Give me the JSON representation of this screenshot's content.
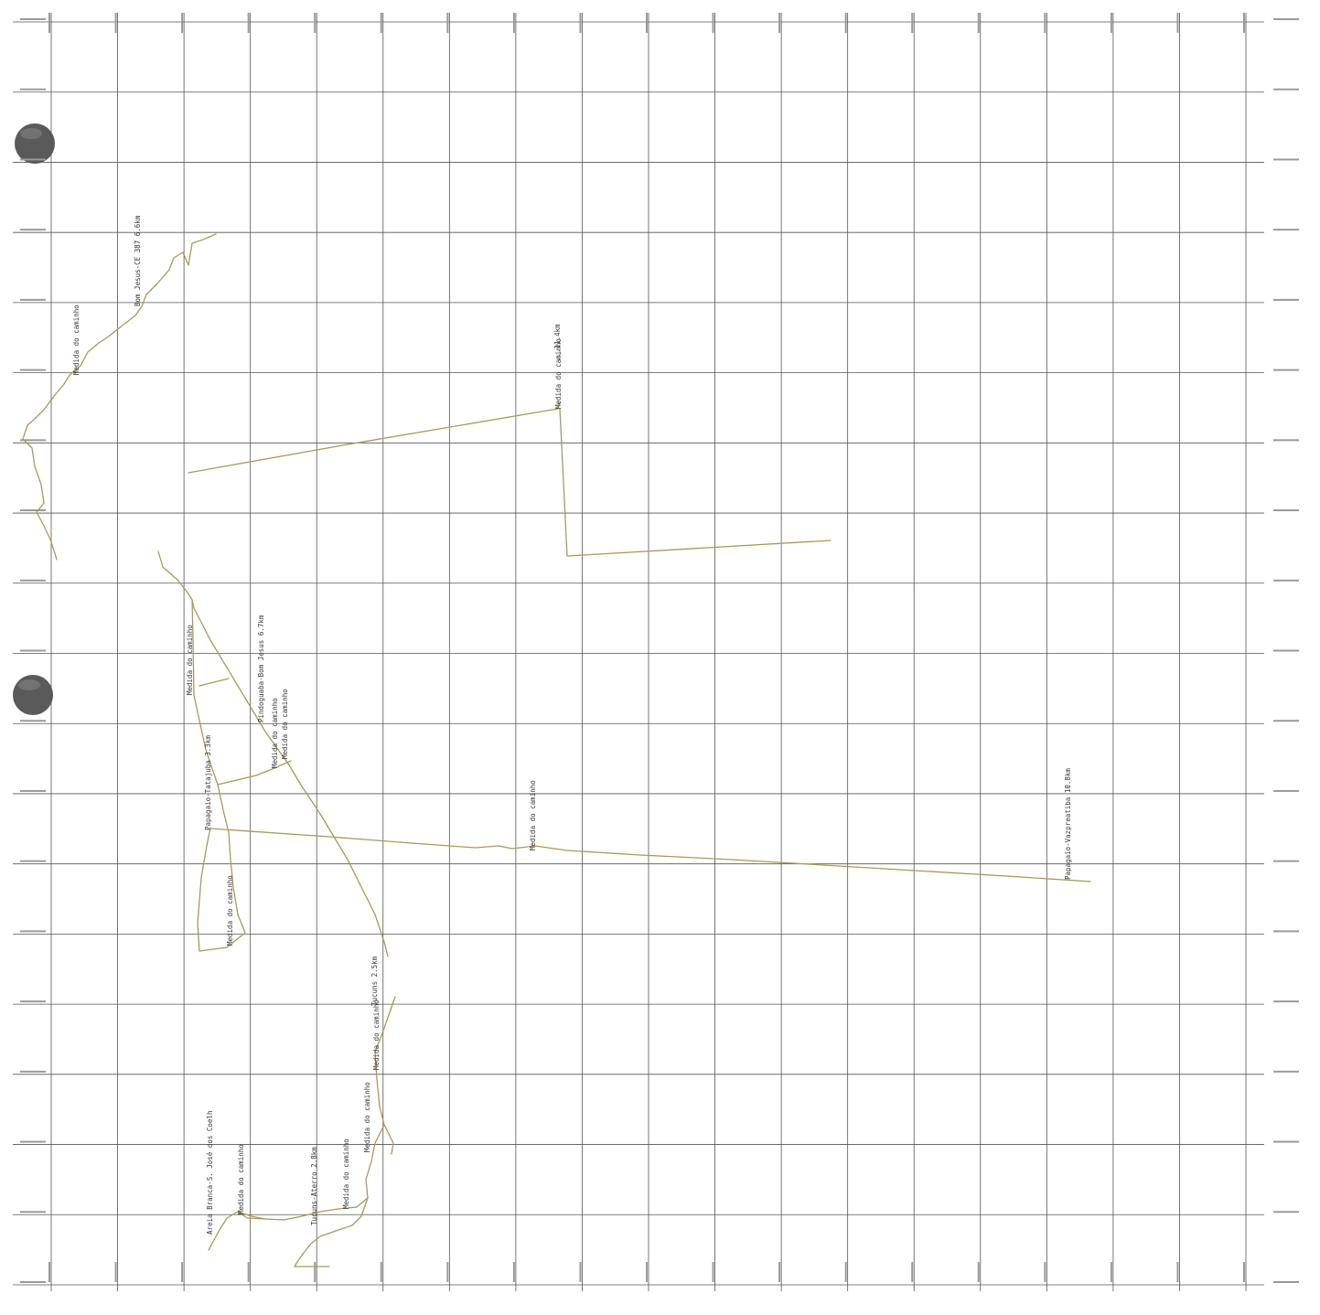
{
  "map": {
    "background": "#ffffff",
    "grid_color": "#555555",
    "route_color": "#a89a58",
    "grid_cols": 18,
    "grid_rows": 18,
    "labels": [
      {
        "id": "lbl-bom-jesus-ce387",
        "text": "Bom Jesus-CE 387 6.6km"
      },
      {
        "id": "lbl-medida-top-left",
        "text": "Medida do caminho"
      },
      {
        "id": "lbl-top-center-1",
        "text": "...11.4km"
      },
      {
        "id": "lbl-top-center-2",
        "text": "Medida do caminho"
      },
      {
        "id": "lbl-medida-mid-left",
        "text": "Medida do caminho"
      },
      {
        "id": "lbl-pindoguaba-bom-jesus",
        "text": "Pindoguaba-Bom Jesus 6.7km"
      },
      {
        "id": "lbl-medida-mid-2",
        "text": "Medida do caminho"
      },
      {
        "id": "lbl-medida-mid-3",
        "text": "Medida do caminho"
      },
      {
        "id": "lbl-papagaio-tatajuba",
        "text": "Papagaio-Tatajuba 3.3km"
      },
      {
        "id": "lbl-medida-center",
        "text": "Medida do caminho"
      },
      {
        "id": "lbl-papagaio-vazpreatiba",
        "text": "Papagaio-Vazpreatiba 10.8km"
      },
      {
        "id": "lbl-medida-lower-left",
        "text": "Medida do caminho"
      },
      {
        "id": "lbl-tucuns-25",
        "text": "Tucuns 2.5km"
      },
      {
        "id": "lbl-medida-bottom-1",
        "text": "Medida do caminho"
      },
      {
        "id": "lbl-medida-bottom-2",
        "text": "Medida do caminho"
      },
      {
        "id": "lbl-areia-branca",
        "text": "Areia Branca-S. José dos Coelh"
      },
      {
        "id": "lbl-medida-bottom-3",
        "text": "Medida do caminho"
      },
      {
        "id": "lbl-tucuns-aterro",
        "text": "Tucuns-Aterro 2.8km"
      },
      {
        "id": "lbl-medida-bottom-4",
        "text": "Medida do caminho"
      }
    ],
    "routes": [
      {
        "id": "route-west-coast",
        "name": "west-coast-route"
      },
      {
        "id": "route-top-straight",
        "name": "top-straight-route"
      },
      {
        "id": "route-top-right",
        "name": "top-right-route"
      },
      {
        "id": "route-mid-diagonal",
        "name": "mid-diagonal-route"
      },
      {
        "id": "route-papagaio-east",
        "name": "papagaio-east-route"
      },
      {
        "id": "route-lower-loop",
        "name": "lower-loop-route"
      },
      {
        "id": "route-bottom",
        "name": "bottom-route"
      }
    ]
  }
}
